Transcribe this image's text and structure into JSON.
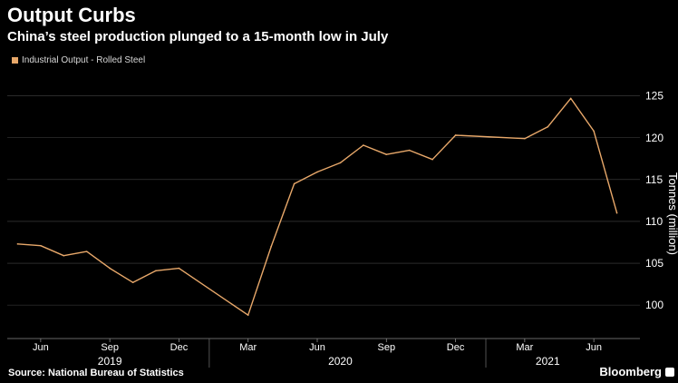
{
  "title": "Output Curbs",
  "subtitle": "China’s steel production plunged to a 15-month low in July",
  "source": "Source: National Bureau of Statistics",
  "brand": "Bloomberg",
  "colors": {
    "background": "#000000",
    "series": "#e8a86a",
    "gridline": "#444444",
    "text": "#ffffff"
  },
  "chart_data": {
    "type": "line",
    "title": "",
    "ylabel": "Tonnes (million)",
    "ylim": [
      96,
      128
    ],
    "yticks": [
      100,
      105,
      110,
      115,
      120,
      125
    ],
    "grid": true,
    "legend_position": "top-left",
    "x_tick_labels": [
      {
        "label": "Jun",
        "month": "2019-06"
      },
      {
        "label": "Sep",
        "month": "2019-09"
      },
      {
        "label": "Dec",
        "month": "2019-12"
      },
      {
        "label": "Mar",
        "month": "2020-03"
      },
      {
        "label": "Jun",
        "month": "2020-06"
      },
      {
        "label": "Sep",
        "month": "2020-09"
      },
      {
        "label": "Dec",
        "month": "2020-12"
      },
      {
        "label": "Mar",
        "month": "2021-03"
      },
      {
        "label": "Jun",
        "month": "2021-06"
      }
    ],
    "x_year_labels": [
      {
        "label": "2019",
        "month": "2019-09"
      },
      {
        "label": "2020",
        "month": "2020-07"
      },
      {
        "label": "2021",
        "month": "2021-04"
      }
    ],
    "series": [
      {
        "name": "Industrial Output - Rolled Steel",
        "color": "#e8a86a",
        "points": [
          {
            "x": "2019-05",
            "y": 107.3
          },
          {
            "x": "2019-06",
            "y": 107.1
          },
          {
            "x": "2019-07",
            "y": 105.9
          },
          {
            "x": "2019-08",
            "y": 106.4
          },
          {
            "x": "2019-09",
            "y": 104.4
          },
          {
            "x": "2019-10",
            "y": 102.7
          },
          {
            "x": "2019-11",
            "y": 104.1
          },
          {
            "x": "2019-12",
            "y": 104.4
          },
          {
            "x": "2020-03",
            "y": 98.8
          },
          {
            "x": "2020-04",
            "y": 107.0
          },
          {
            "x": "2020-05",
            "y": 114.5
          },
          {
            "x": "2020-06",
            "y": 115.9
          },
          {
            "x": "2020-07",
            "y": 117.0
          },
          {
            "x": "2020-08",
            "y": 119.1
          },
          {
            "x": "2020-09",
            "y": 118.0
          },
          {
            "x": "2020-10",
            "y": 118.5
          },
          {
            "x": "2020-11",
            "y": 117.4
          },
          {
            "x": "2020-12",
            "y": 120.3
          },
          {
            "x": "2021-03",
            "y": 119.9
          },
          {
            "x": "2021-04",
            "y": 121.3
          },
          {
            "x": "2021-05",
            "y": 124.7
          },
          {
            "x": "2021-06",
            "y": 120.8
          },
          {
            "x": "2021-07",
            "y": 111.0
          }
        ]
      }
    ]
  }
}
